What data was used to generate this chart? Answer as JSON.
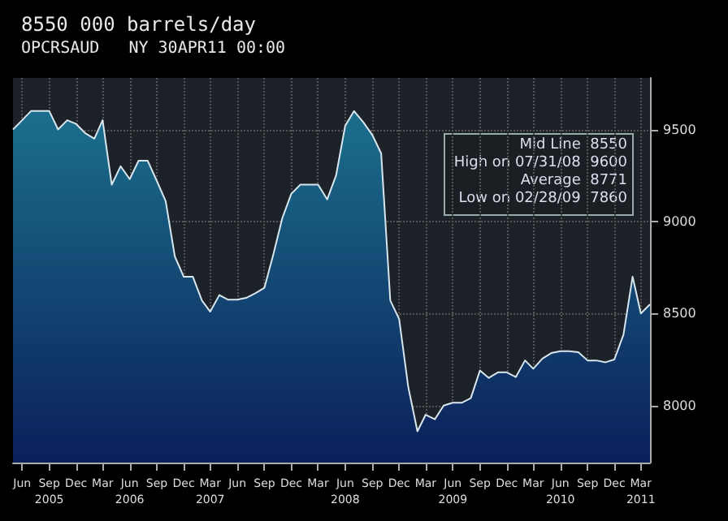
{
  "chart_data": {
    "type": "area",
    "title": "8550 000 barrels/day",
    "subtitle": "OPCRSAUD   NY 30APR11 00:00",
    "x": [
      "2005-05",
      "2005-06",
      "2005-07",
      "2005-08",
      "2005-09",
      "2005-10",
      "2005-11",
      "2005-12",
      "2006-01",
      "2006-02",
      "2006-03",
      "2006-04",
      "2006-05",
      "2006-06",
      "2006-07",
      "2006-08",
      "2006-09",
      "2006-10",
      "2006-11",
      "2006-12",
      "2007-01",
      "2007-02",
      "2007-03",
      "2007-04",
      "2007-05",
      "2007-06",
      "2007-07",
      "2007-08",
      "2007-09",
      "2007-10",
      "2007-11",
      "2007-12",
      "2008-01",
      "2008-02",
      "2008-03",
      "2008-04",
      "2008-05",
      "2008-06",
      "2008-07",
      "2008-08",
      "2008-09",
      "2008-10",
      "2008-11",
      "2008-12",
      "2009-01",
      "2009-02",
      "2009-03",
      "2009-04",
      "2009-05",
      "2009-06",
      "2009-07",
      "2009-08",
      "2009-09",
      "2009-10",
      "2009-11",
      "2009-12",
      "2010-01",
      "2010-02",
      "2010-03",
      "2010-04",
      "2010-05",
      "2010-06",
      "2010-07",
      "2010-08",
      "2010-09",
      "2010-10",
      "2010-11",
      "2010-12",
      "2011-01",
      "2011-02",
      "2011-03",
      "2011-04"
    ],
    "series": [
      {
        "color": "#1b6f8c",
        "values": [
          9500,
          9550,
          9600,
          9600,
          9600,
          9500,
          9550,
          9530,
          9480,
          9450,
          9550,
          9200,
          9300,
          9230,
          9330,
          9330,
          9220,
          9110,
          8810,
          8700,
          8700,
          8570,
          8510,
          8600,
          8575,
          8575,
          8585,
          8610,
          8640,
          8820,
          9020,
          9150,
          9200,
          9200,
          9200,
          9120,
          9250,
          9520,
          9600,
          9540,
          9470,
          9370,
          8570,
          8470,
          8100,
          7860,
          7950,
          7925,
          8000,
          8015,
          8015,
          8040,
          8190,
          8150,
          8180,
          8180,
          8155,
          8245,
          8200,
          8255,
          8285,
          8295,
          8295,
          8290,
          8245,
          8245,
          8235,
          8250,
          8385,
          8700,
          8500,
          8550
        ]
      }
    ],
    "xlim": [
      "2005-05",
      "2011-04"
    ],
    "xticks": [
      {
        "value": "2005-06",
        "label": "Jun"
      },
      {
        "value": "2005-09",
        "label": "Sep\n2005"
      },
      {
        "value": "2005-12",
        "label": "Dec"
      },
      {
        "value": "2006-03",
        "label": "Mar"
      },
      {
        "value": "2006-06",
        "label": "Jun\n2006"
      },
      {
        "value": "2006-09",
        "label": "Sep"
      },
      {
        "value": "2006-12",
        "label": "Dec"
      },
      {
        "value": "2007-03",
        "label": "Mar\n2007"
      },
      {
        "value": "2007-06",
        "label": "Jun"
      },
      {
        "value": "2007-09",
        "label": "Sep"
      },
      {
        "value": "2007-12",
        "label": "Dec"
      },
      {
        "value": "2008-03",
        "label": "Mar"
      },
      {
        "value": "2008-06",
        "label": "Jun\n2008"
      },
      {
        "value": "2008-09",
        "label": "Sep"
      },
      {
        "value": "2008-12",
        "label": "Dec"
      },
      {
        "value": "2009-03",
        "label": "Mar"
      },
      {
        "value": "2009-06",
        "label": "Jun\n2009"
      },
      {
        "value": "2009-09",
        "label": "Sep"
      },
      {
        "value": "2009-12",
        "label": "Dec"
      },
      {
        "value": "2010-03",
        "label": "Mar"
      },
      {
        "value": "2010-06",
        "label": "Jun\n2010"
      },
      {
        "value": "2010-09",
        "label": "Sep"
      },
      {
        "value": "2010-12",
        "label": "Dec"
      },
      {
        "value": "2011-03",
        "label": "Mar\n2011"
      }
    ],
    "ylim": [
      7690,
      9780
    ],
    "yticks": [
      8000,
      8500,
      9000,
      9500
    ],
    "grid": true,
    "annotations": [
      "Mid Line  8550",
      "High on 07/31/08  9600",
      "Average  8771",
      "Low on 02/28/09  7860"
    ]
  }
}
